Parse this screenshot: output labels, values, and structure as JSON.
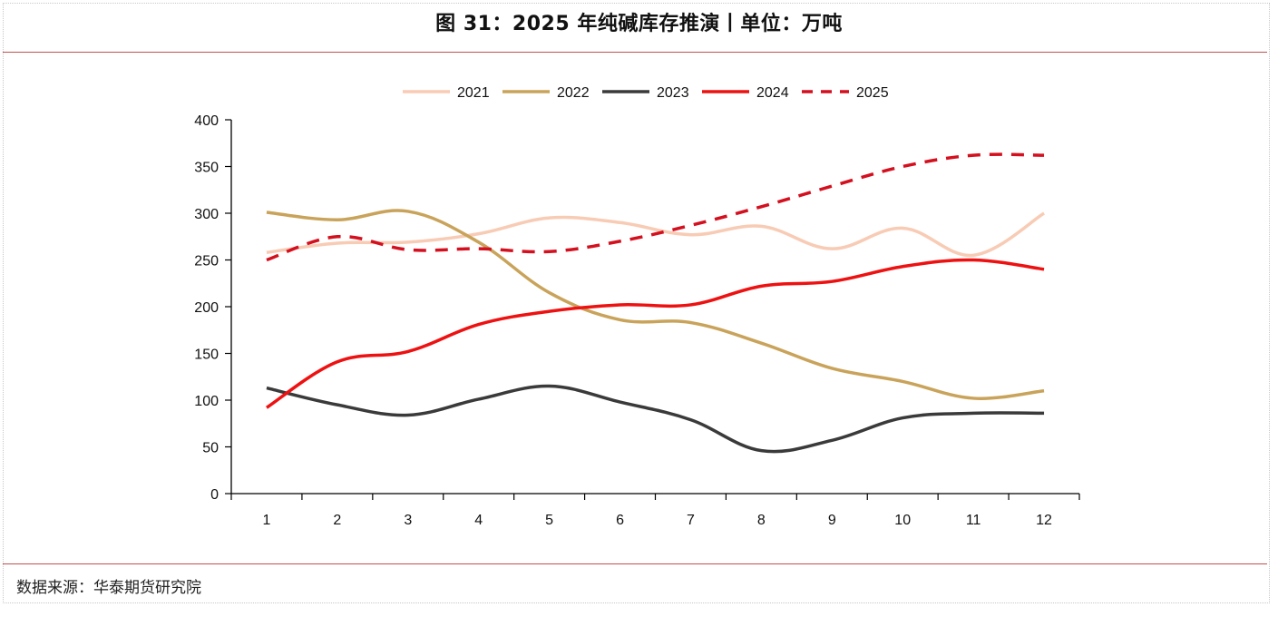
{
  "title": "图 31：2025 年纯碱库存推演丨单位：万吨",
  "source": "数据来源：华泰期货研究院",
  "chart_data": {
    "type": "line",
    "title": "图 31：2025 年纯碱库存推演丨单位：万吨",
    "xlabel": "",
    "ylabel": "",
    "categories": [
      "1",
      "2",
      "3",
      "4",
      "5",
      "6",
      "7",
      "8",
      "9",
      "10",
      "11",
      "12"
    ],
    "ylim": [
      0,
      400
    ],
    "yticks": [
      0,
      50,
      100,
      150,
      200,
      250,
      300,
      350,
      400
    ],
    "legend_position": "top",
    "grid": false,
    "series": [
      {
        "name": "2021",
        "color": "#f8cbb5",
        "dashed": false,
        "values": [
          258,
          268,
          269,
          278,
          295,
          290,
          277,
          286,
          262,
          284,
          255,
          300
        ]
      },
      {
        "name": "2022",
        "color": "#c9a35a",
        "dashed": false,
        "values": [
          301,
          293,
          302,
          269,
          215,
          186,
          183,
          161,
          134,
          120,
          102,
          110
        ]
      },
      {
        "name": "2023",
        "color": "#3a3a3a",
        "dashed": false,
        "values": [
          113,
          95,
          84,
          101,
          115,
          98,
          79,
          46,
          57,
          81,
          86,
          86
        ]
      },
      {
        "name": "2024",
        "color": "#ee1111",
        "dashed": false,
        "values": [
          92,
          141,
          152,
          181,
          195,
          202,
          202,
          222,
          227,
          243,
          250,
          240
        ]
      },
      {
        "name": "2025",
        "color": "#d40f1e",
        "dashed": true,
        "values": [
          250,
          275,
          261,
          262,
          259,
          270,
          287,
          307,
          329,
          350,
          362,
          362
        ]
      }
    ]
  }
}
